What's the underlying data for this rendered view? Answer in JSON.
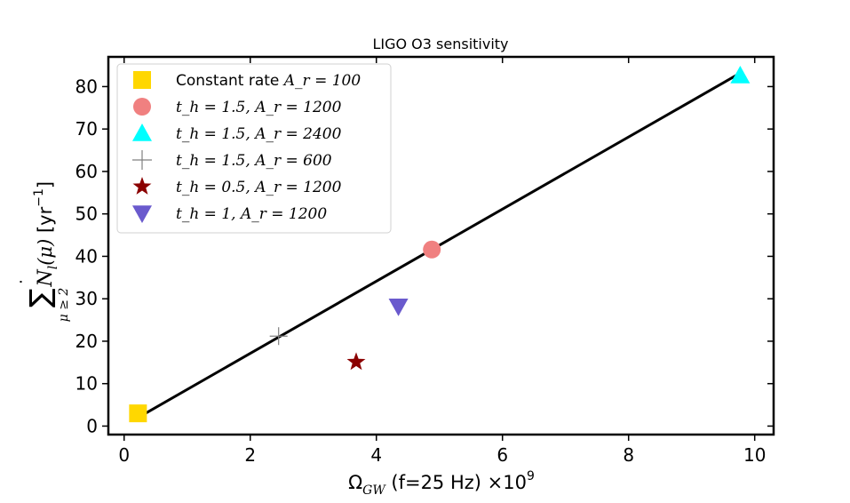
{
  "chart_data": {
    "type": "scatter",
    "title": "LIGO O3 sensitivity",
    "xlabel": "Ω_GW (f=25 Hz) ×10^9",
    "xlabel_parts": {
      "omega": "Ω",
      "sub": "GW",
      "rest": " (f=25 Hz) ×10",
      "sup": "9"
    },
    "ylabel": "Σ_{μ≥2} Ṅ_l(μ) [yr^-1]",
    "ylabel_parts": {
      "sigma": "∑",
      "sub": "μ ≥ 2",
      "n": "N",
      "dot": "˙",
      "nsub": "l",
      "arg": "(μ)",
      "unit": " [yr",
      "sup": "−1",
      "close": "]"
    },
    "xlim": [
      -0.25,
      10.3
    ],
    "ylim": [
      -2,
      87
    ],
    "xticks": [
      0,
      2,
      4,
      6,
      8,
      10
    ],
    "yticks": [
      0,
      10,
      20,
      30,
      40,
      50,
      60,
      70,
      80
    ],
    "fit_line": {
      "x": [
        0.22,
        9.75
      ],
      "y": [
        2,
        83
      ],
      "color": "#000000"
    },
    "series": [
      {
        "name": "Constant rate A_r = 100",
        "label_prefix": "Constant rate ",
        "param1": "",
        "param2": "A_r = 100",
        "marker": "square",
        "color": "#FFD700",
        "x": 0.22,
        "y": 3
      },
      {
        "name": "t_h = 1.5, A_r = 1200",
        "label_prefix": "",
        "param1": "t_h = 1.5, ",
        "param2": "A_r = 1200",
        "marker": "circle",
        "color": "#F08080",
        "x": 4.88,
        "y": 41.6
      },
      {
        "name": "t_h = 1.5, A_r = 2400",
        "label_prefix": "",
        "param1": "t_h = 1.5, ",
        "param2": "A_r = 2400",
        "marker": "triangle-up",
        "color": "#00FFFF",
        "x": 9.77,
        "y": 82.6
      },
      {
        "name": "t_h = 1.5, A_r = 600",
        "label_prefix": "",
        "param1": "t_h = 1.5, ",
        "param2": "A_r = 600",
        "marker": "plus",
        "color": "#808080",
        "x": 2.45,
        "y": 21.2
      },
      {
        "name": "t_h = 0.5, A_r = 1200",
        "label_prefix": "",
        "param1": "t_h = 0.5, ",
        "param2": "A_r = 1200",
        "marker": "star",
        "color": "#8B0000",
        "x": 3.68,
        "y": 15.1
      },
      {
        "name": "t_h = 1, A_r = 1200",
        "label_prefix": "",
        "param1": "t_h = 1, ",
        "param2": "A_r = 1200",
        "marker": "triangle-down",
        "color": "#6A5ACD",
        "x": 4.35,
        "y": 28.2
      }
    ],
    "legend": "upper-left"
  }
}
